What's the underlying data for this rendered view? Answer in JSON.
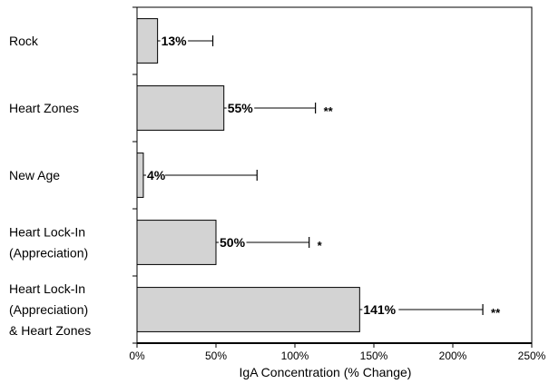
{
  "chart_data": {
    "type": "bar",
    "orientation": "horizontal",
    "categories": [
      [
        "Rock"
      ],
      [
        "Heart Zones"
      ],
      [
        "New Age"
      ],
      [
        "Heart Lock-In",
        "(Appreciation)"
      ],
      [
        "Heart Lock-In",
        "(Appreciation)",
        "& Heart Zones"
      ]
    ],
    "values": [
      13,
      55,
      4,
      50,
      141
    ],
    "error_upper": [
      48,
      113,
      76,
      109,
      219
    ],
    "value_labels": [
      "13%",
      "55%",
      "4%",
      "50%",
      "141%"
    ],
    "significance": [
      "",
      "**",
      "",
      "*",
      "**"
    ],
    "xlabel": "IgA Concentration (% Change)",
    "xlim": [
      0,
      250
    ],
    "xticks": [
      0,
      50,
      100,
      150,
      200,
      250
    ],
    "xtick_labels": [
      "0%",
      "50%",
      "100%",
      "150%",
      "200%",
      "250%"
    ],
    "grid": false,
    "bar_color": "#d3d3d3"
  }
}
